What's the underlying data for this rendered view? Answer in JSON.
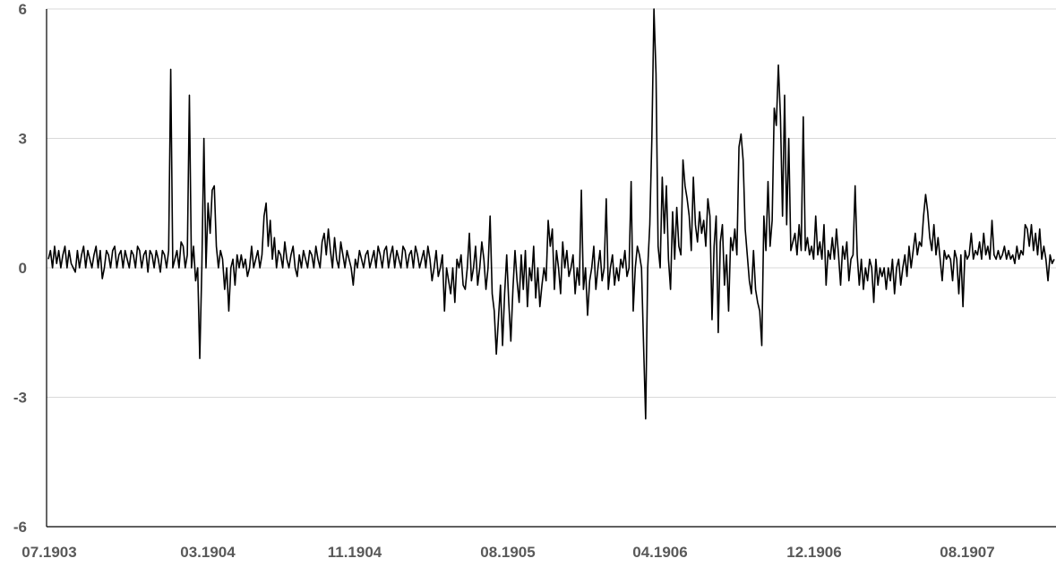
{
  "chart_data": {
    "type": "line",
    "title": "",
    "xlabel": "",
    "ylabel": "",
    "ylim": [
      -6,
      6
    ],
    "yticks": [
      6,
      3,
      0,
      -3,
      -6
    ],
    "ytick_labels": [
      "6",
      "3",
      "0",
      "-3",
      "-6"
    ],
    "x_tick_labels": [
      "07.1903",
      "03.1904",
      "11.1904",
      "08.1905",
      "04.1906",
      "12.1906",
      "08.1907"
    ],
    "grid": true,
    "legend": "none",
    "line_color": "#000000",
    "grid_color": "#d9d9d9",
    "tick_color": "#595959",
    "series": [
      {
        "x_start": "07.1903",
        "x_end": "09.1907",
        "values": [
          0.2,
          0.4,
          0.0,
          0.5,
          0.1,
          0.4,
          0.0,
          0.3,
          0.5,
          0.0,
          0.4,
          0.1,
          0.0,
          -0.1,
          0.4,
          0.0,
          0.3,
          0.5,
          0.0,
          0.4,
          0.2,
          0.0,
          0.3,
          0.5,
          0.0,
          0.4,
          -0.25,
          0.0,
          0.4,
          0.3,
          0.0,
          0.4,
          0.5,
          0.0,
          0.3,
          0.4,
          0.0,
          0.4,
          0.2,
          0.0,
          0.4,
          0.3,
          0.0,
          0.5,
          0.4,
          0.0,
          0.3,
          0.4,
          -0.1,
          0.4,
          0.3,
          0.0,
          0.4,
          0.2,
          -0.1,
          0.4,
          0.3,
          0.0,
          0.4,
          4.6,
          0.0,
          0.2,
          0.4,
          0.0,
          0.6,
          0.5,
          0.0,
          0.3,
          4.0,
          0.0,
          0.5,
          -0.3,
          0.0,
          -2.1,
          0.0,
          3.0,
          0.0,
          1.5,
          0.8,
          1.8,
          1.9,
          0.5,
          0.0,
          0.4,
          0.2,
          -0.5,
          0.0,
          -1.0,
          0.0,
          0.2,
          -0.4,
          0.3,
          0.0,
          0.3,
          0.0,
          0.2,
          -0.2,
          0.0,
          0.5,
          0.0,
          0.2,
          0.4,
          0.0,
          0.3,
          1.2,
          1.5,
          0.5,
          1.1,
          0.2,
          0.7,
          0.0,
          0.4,
          0.3,
          0.0,
          0.6,
          0.2,
          0.0,
          0.3,
          0.5,
          0.0,
          -0.2,
          0.3,
          0.0,
          0.4,
          0.2,
          0.0,
          0.4,
          0.3,
          0.0,
          0.5,
          0.2,
          0.0,
          0.6,
          0.8,
          0.3,
          0.9,
          0.4,
          0.0,
          0.7,
          0.2,
          0.0,
          0.6,
          0.3,
          0.0,
          0.4,
          0.2,
          0.0,
          -0.4,
          0.2,
          0.0,
          0.4,
          0.2,
          0.0,
          0.3,
          0.4,
          0.0,
          0.2,
          0.4,
          0.0,
          0.5,
          0.3,
          0.0,
          0.4,
          0.5,
          0.0,
          0.3,
          0.5,
          0.0,
          0.4,
          0.2,
          0.0,
          0.5,
          0.4,
          0.0,
          0.3,
          0.4,
          0.0,
          0.5,
          0.3,
          0.0,
          0.2,
          0.4,
          0.0,
          0.5,
          0.2,
          -0.3,
          0.0,
          0.4,
          -0.2,
          0.0,
          0.3,
          -1.0,
          0.0,
          -0.3,
          -0.6,
          0.0,
          -0.8,
          0.2,
          0.0,
          0.3,
          -0.4,
          -0.5,
          0.0,
          0.8,
          -0.3,
          0.0,
          0.5,
          -0.4,
          0.0,
          0.6,
          0.2,
          -0.5,
          0.0,
          1.2,
          -0.6,
          -1.0,
          -2.0,
          -1.2,
          -0.4,
          -1.8,
          -0.6,
          0.3,
          -0.8,
          -1.7,
          -0.5,
          0.4,
          -0.3,
          -0.8,
          0.3,
          -0.5,
          0.4,
          -0.9,
          0.0,
          -0.3,
          0.5,
          -0.7,
          0.0,
          -0.9,
          -0.4,
          0.0,
          -0.3,
          1.1,
          0.5,
          0.9,
          -0.5,
          0.4,
          0.0,
          -0.6,
          0.6,
          0.0,
          0.4,
          -0.2,
          0.0,
          0.3,
          -0.6,
          0.0,
          -0.4,
          1.8,
          -0.5,
          0.0,
          -1.1,
          -0.3,
          0.0,
          0.5,
          -0.5,
          0.0,
          0.4,
          -0.3,
          0.0,
          1.6,
          -0.5,
          0.0,
          0.3,
          -0.4,
          0.0,
          -0.3,
          0.2,
          0.0,
          0.4,
          -0.2,
          0.0,
          2.0,
          -1.0,
          0.0,
          0.5,
          0.3,
          0.0,
          -1.8,
          -3.5,
          0.0,
          1.0,
          3.0,
          6.0,
          4.5,
          0.5,
          0.0,
          2.1,
          0.8,
          1.9,
          0.2,
          -0.5,
          1.3,
          0.2,
          1.4,
          0.5,
          0.3,
          2.5,
          1.9,
          1.6,
          1.2,
          0.4,
          2.1,
          1.0,
          0.6,
          1.3,
          0.8,
          1.1,
          0.5,
          1.6,
          1.2,
          -1.2,
          0.5,
          1.2,
          -1.5,
          0.6,
          1.0,
          -0.4,
          0.3,
          -1.0,
          0.7,
          0.4,
          0.9,
          0.3,
          2.8,
          3.1,
          2.5,
          0.9,
          0.3,
          -0.3,
          -0.6,
          0.4,
          -0.5,
          -0.8,
          -1.0,
          -1.8,
          1.2,
          0.4,
          2.0,
          0.5,
          1.1,
          3.7,
          3.3,
          4.7,
          3.5,
          1.2,
          4.0,
          1.0,
          3.0,
          0.4,
          0.6,
          0.8,
          0.3,
          1.0,
          0.4,
          3.5,
          0.4,
          0.7,
          0.3,
          0.5,
          0.2,
          1.2,
          0.3,
          0.6,
          0.2,
          1.0,
          -0.4,
          0.4,
          0.2,
          0.7,
          0.2,
          0.9,
          0.3,
          -0.4,
          0.5,
          0.2,
          0.6,
          -0.3,
          0.2,
          0.3,
          1.9,
          0.3,
          -0.4,
          0.2,
          -0.5,
          0.0,
          -0.3,
          0.2,
          0.0,
          -0.8,
          0.2,
          -0.4,
          0.0,
          -0.2,
          0.0,
          -0.5,
          0.0,
          -0.3,
          0.2,
          -0.6,
          0.0,
          0.2,
          -0.4,
          0.0,
          0.3,
          -0.2,
          0.5,
          0.0,
          0.4,
          0.8,
          0.3,
          0.6,
          0.5,
          1.2,
          1.7,
          1.3,
          0.7,
          0.4,
          1.0,
          0.3,
          0.7,
          0.2,
          -0.3,
          0.4,
          0.2,
          0.3,
          0.2,
          -0.3,
          0.4,
          0.2,
          -0.6,
          0.3,
          -0.9,
          0.4,
          0.2,
          0.3,
          0.8,
          0.2,
          0.4,
          0.3,
          0.6,
          0.2,
          0.8,
          0.3,
          0.5,
          0.2,
          1.1,
          0.3,
          0.2,
          0.4,
          0.2,
          0.3,
          0.5,
          0.2,
          0.4,
          0.2,
          0.3,
          0.1,
          0.5,
          0.2,
          0.4,
          0.3,
          1.0,
          0.9,
          0.5,
          1.0,
          0.4,
          0.8,
          0.3,
          0.9,
          0.2,
          0.5,
          0.2,
          -0.3,
          0.3,
          0.1,
          0.2
        ]
      }
    ]
  }
}
